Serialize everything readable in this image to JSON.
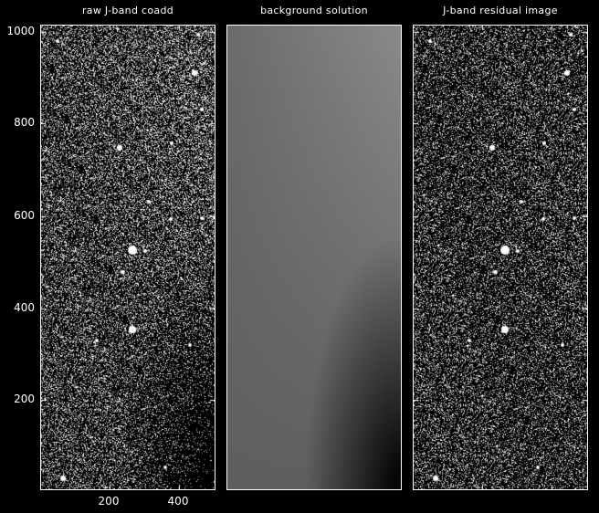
{
  "panels": [
    {
      "title": "raw J-band coadd",
      "kind": "raw"
    },
    {
      "title": "background solution",
      "kind": "background"
    },
    {
      "title": "J-band residual image",
      "kind": "residual"
    }
  ],
  "axes": {
    "y_ticks": [
      "1000",
      "800",
      "600",
      "400",
      "200"
    ],
    "x_ticks": [
      "200",
      "400"
    ],
    "x_range": [
      0,
      508
    ],
    "y_range": [
      0,
      1010
    ]
  },
  "colors": {
    "background": "#000000",
    "frame": "#ffffff"
  }
}
